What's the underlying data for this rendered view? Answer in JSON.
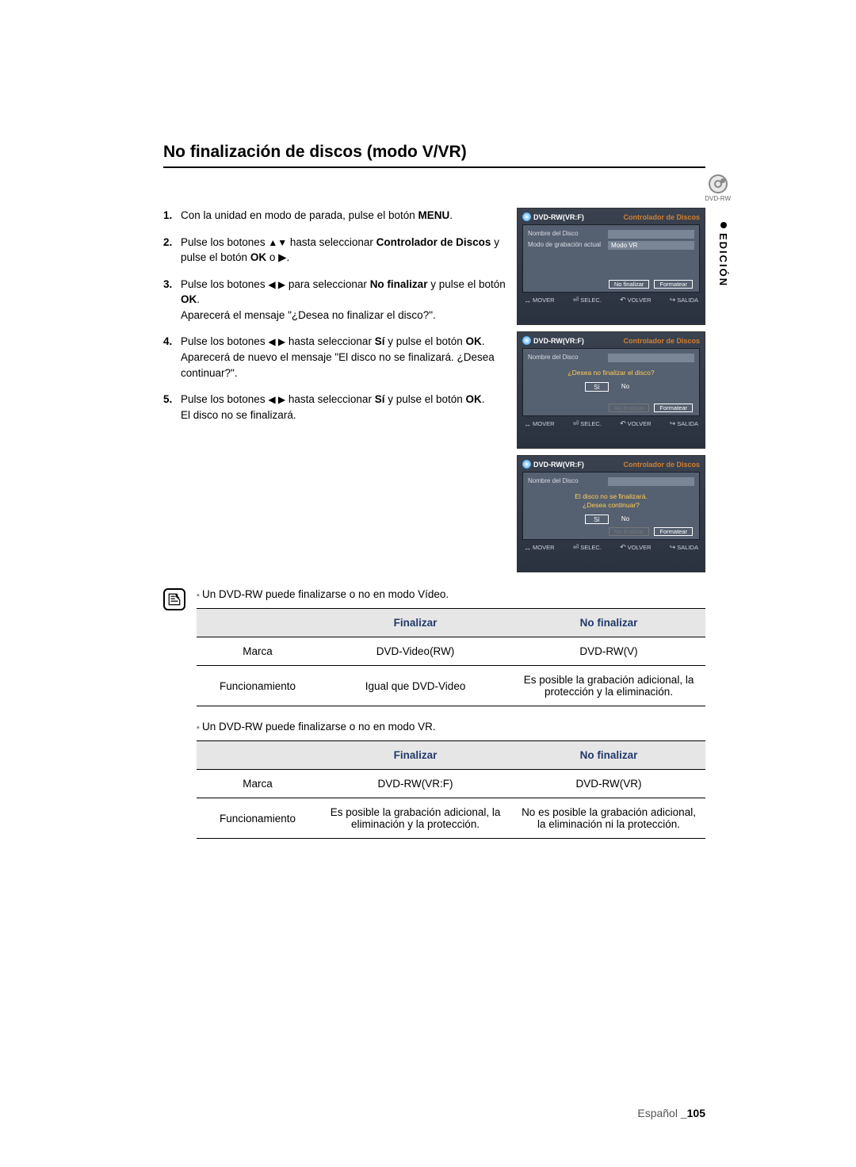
{
  "heading": "No finalización de discos (modo V/VR)",
  "steps": [
    {
      "pre": "Con la unidad en modo de parada, pulse el botón ",
      "bold": "MENU",
      "post": "."
    },
    {
      "pre": "Pulse los botones ",
      "sym": "▲▼",
      "mid": " hasta seleccionar ",
      "bold": "Controlador de Discos",
      "post": " y pulse el botón ",
      "bold2": "OK",
      "post2": " o ▶."
    },
    {
      "pre": "Pulse los botones ",
      "sym": "◀ ▶",
      "mid": " para seleccionar ",
      "bold": "No finalizar",
      "post": " y pulse el botón ",
      "bold2": "OK",
      "post2": ".",
      "line2": "Aparecerá el mensaje \"¿Desea no finalizar el disco?\"."
    },
    {
      "pre": "Pulse los botones ",
      "sym": "◀ ▶",
      "mid": " hasta seleccionar ",
      "bold": "Sí",
      "post": " y pulse el botón ",
      "bold2": "OK",
      "post2": ".",
      "line2": "Aparecerá de nuevo el mensaje \"El disco no se finalizará. ¿Desea continuar?\"."
    },
    {
      "pre": "Pulse los botones ",
      "sym": "◀ ▶",
      "mid": " hasta seleccionar ",
      "bold": "Sí",
      "post": " y pulse el botón ",
      "bold2": "OK",
      "post2": ".",
      "line2": "El disco no se finalizará."
    }
  ],
  "sidetab": "EDICIÓN",
  "dvd_badge": "DVD-RW",
  "panels": [
    {
      "title": "DVD-RW(VR:F)",
      "subtitle": "Controlador de Discos",
      "rows": [
        {
          "lbl": "Nombre del Disco",
          "val": ""
        },
        {
          "lbl": "Modo de grabación actual",
          "val": "Modo VR"
        }
      ],
      "q": "",
      "lowbtns": [
        {
          "t": "No finalizar",
          "dim": false
        },
        {
          "t": "Formatear",
          "dim": false
        }
      ],
      "footer": [
        "MOVER",
        "SELEC.",
        "VOLVER",
        "SALIDA"
      ]
    },
    {
      "title": "DVD-RW(VR:F)",
      "subtitle": "Controlador de Discos",
      "rows": [
        {
          "lbl": "Nombre del Disco",
          "val": ""
        }
      ],
      "q": "¿Desea no finalizar el disco?",
      "btns": [
        {
          "t": "Sí",
          "outline": true
        },
        {
          "t": "No",
          "outline": false
        }
      ],
      "lowbtns": [
        {
          "t": "No finalizar",
          "dim": true
        },
        {
          "t": "Formatear",
          "dim": false
        }
      ],
      "footer": [
        "MOVER",
        "SELEC.",
        "VOLVER",
        "SALIDA"
      ]
    },
    {
      "title": "DVD-RW(VR:F)",
      "subtitle": "Controlador de Discos",
      "rows": [
        {
          "lbl": "Nombre del Disco",
          "val": ""
        }
      ],
      "q": "El disco no se finalizará.\n¿Desea continuar?",
      "btns": [
        {
          "t": "Sí",
          "outline": true
        },
        {
          "t": "No",
          "outline": false
        }
      ],
      "lowbtns": [
        {
          "t": "No finalizar",
          "dim": true
        },
        {
          "t": "Formatear",
          "dim": false
        }
      ],
      "footer": [
        "MOVER",
        "SELEC.",
        "VOLVER",
        "SALIDA"
      ]
    }
  ],
  "note1": "Un DVD-RW puede finalizarse o no en modo Vídeo.",
  "table1": {
    "head": [
      "",
      "Finalizar",
      "No finalizar"
    ],
    "rows": [
      [
        "Marca",
        "DVD-Video(RW)",
        "DVD-RW(V)"
      ],
      [
        "Funcionamiento",
        "Igual que DVD-Video",
        "Es posible la grabación adicional, la protección y la eliminación."
      ]
    ]
  },
  "note2": "Un DVD-RW puede finalizarse o no en modo VR.",
  "table2": {
    "head": [
      "",
      "Finalizar",
      "No finalizar"
    ],
    "rows": [
      [
        "Marca",
        "DVD-RW(VR:F)",
        "DVD-RW(VR)"
      ],
      [
        "Funcionamiento",
        "Es posible la grabación adicional, la eliminación y la protección.",
        "No es posible la grabación adicional, la eliminación ni la protección."
      ]
    ]
  },
  "footer": {
    "lang": "Español ",
    "page": "_105"
  },
  "footer_syms": {
    "mover": "↔",
    "selec": "⏎",
    "volver": "↶",
    "salida": "↪"
  }
}
